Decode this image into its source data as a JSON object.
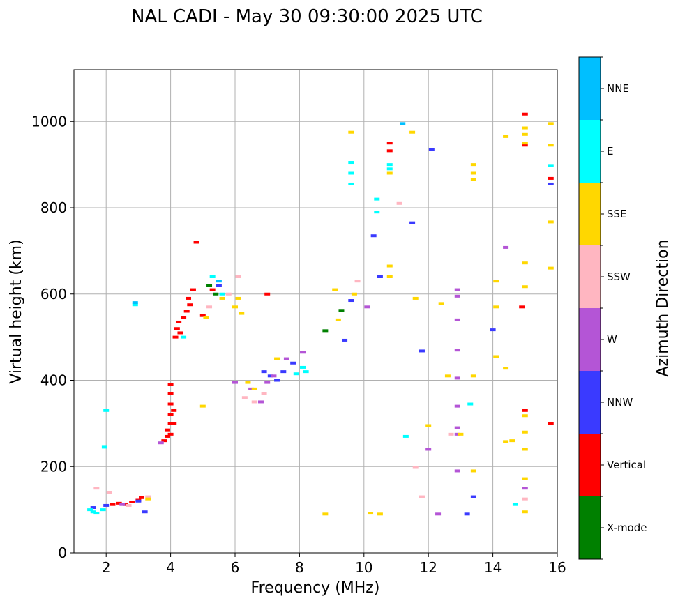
{
  "chart_data": {
    "type": "scatter",
    "title": "NAL CADI - May 30 09:30:00 2025 UTC",
    "xlabel": "Frequency (MHz)",
    "ylabel": "Virtual height (km)",
    "xlim": [
      1,
      16
    ],
    "ylim": [
      0,
      1120
    ],
    "xticks": [
      "2",
      "4",
      "6",
      "8",
      "10",
      "12",
      "14",
      "16"
    ],
    "yticks": [
      "0",
      "200",
      "400",
      "600",
      "800",
      "1000"
    ],
    "xtick_values": [
      2,
      4,
      6,
      8,
      10,
      12,
      14,
      16
    ],
    "ytick_values": [
      0,
      200,
      400,
      600,
      800,
      1000
    ],
    "grid": true,
    "colorbar": {
      "label": "Azimuth Direction",
      "categories": [
        "X-mode",
        "Vertical",
        "NNW",
        "W",
        "SSW",
        "SSE",
        "E",
        "NNE"
      ],
      "colors": [
        "#008000",
        "#ff0000",
        "#3a3aff",
        "#b455d6",
        "#ffb6c1",
        "#ffd700",
        "#00ffff",
        "#00bfff"
      ]
    },
    "series": [
      {
        "name": "Vertical",
        "points": [
          [
            2.2,
            112
          ],
          [
            2.4,
            115
          ],
          [
            2.6,
            112
          ],
          [
            2.8,
            118
          ],
          [
            3.0,
            122
          ],
          [
            3.1,
            128
          ],
          [
            3.8,
            260
          ],
          [
            3.9,
            270
          ],
          [
            3.9,
            285
          ],
          [
            4.0,
            275
          ],
          [
            4.0,
            300
          ],
          [
            4.0,
            320
          ],
          [
            4.0,
            345
          ],
          [
            4.0,
            370
          ],
          [
            4.0,
            390
          ],
          [
            4.1,
            300
          ],
          [
            4.1,
            330
          ],
          [
            4.15,
            500
          ],
          [
            4.2,
            520
          ],
          [
            4.25,
            535
          ],
          [
            4.3,
            510
          ],
          [
            4.4,
            545
          ],
          [
            4.5,
            560
          ],
          [
            4.55,
            590
          ],
          [
            4.6,
            575
          ],
          [
            4.7,
            610
          ],
          [
            4.8,
            720
          ],
          [
            5.0,
            550
          ],
          [
            5.3,
            610
          ],
          [
            7.0,
            600
          ],
          [
            10.8,
            950
          ],
          [
            10.8,
            932
          ],
          [
            14.9,
            570
          ],
          [
            15.0,
            1017
          ],
          [
            15.0,
            945
          ],
          [
            15.0,
            330
          ],
          [
            15.8,
            300
          ],
          [
            15.8,
            868
          ]
        ]
      },
      {
        "name": "NNW",
        "points": [
          [
            1.6,
            105
          ],
          [
            2.0,
            110
          ],
          [
            3.0,
            120
          ],
          [
            3.2,
            95
          ],
          [
            5.5,
            620
          ],
          [
            6.9,
            420
          ],
          [
            7.1,
            410
          ],
          [
            7.3,
            400
          ],
          [
            7.5,
            420
          ],
          [
            7.8,
            440
          ],
          [
            9.4,
            493
          ],
          [
            9.6,
            585
          ],
          [
            10.3,
            735
          ],
          [
            10.5,
            640
          ],
          [
            11.5,
            765
          ],
          [
            11.8,
            468
          ],
          [
            12.1,
            935
          ],
          [
            13.2,
            90
          ],
          [
            13.4,
            130
          ],
          [
            14.0,
            517
          ],
          [
            15.8,
            855
          ]
        ]
      },
      {
        "name": "W",
        "points": [
          [
            2.5,
            112
          ],
          [
            3.7,
            255
          ],
          [
            6.0,
            395
          ],
          [
            6.5,
            380
          ],
          [
            6.8,
            350
          ],
          [
            7.0,
            395
          ],
          [
            7.2,
            410
          ],
          [
            7.6,
            450
          ],
          [
            8.1,
            465
          ],
          [
            10.1,
            570
          ],
          [
            12.0,
            240
          ],
          [
            12.3,
            90
          ],
          [
            12.9,
            610
          ],
          [
            12.9,
            595
          ],
          [
            12.9,
            540
          ],
          [
            12.9,
            470
          ],
          [
            12.9,
            405
          ],
          [
            12.9,
            340
          ],
          [
            12.9,
            290
          ],
          [
            12.9,
            275
          ],
          [
            12.9,
            190
          ],
          [
            14.4,
            708
          ],
          [
            15.0,
            150
          ]
        ]
      },
      {
        "name": "SSW",
        "points": [
          [
            1.7,
            150
          ],
          [
            2.1,
            140
          ],
          [
            2.7,
            110
          ],
          [
            3.3,
            130
          ],
          [
            5.2,
            570
          ],
          [
            5.8,
            600
          ],
          [
            6.1,
            640
          ],
          [
            6.3,
            360
          ],
          [
            6.6,
            350
          ],
          [
            6.9,
            370
          ],
          [
            9.8,
            630
          ],
          [
            11.1,
            810
          ],
          [
            11.8,
            130
          ],
          [
            12.7,
            275
          ],
          [
            15.0,
            125
          ],
          [
            11.6,
            198
          ]
        ]
      },
      {
        "name": "SSE",
        "points": [
          [
            3.3,
            125
          ],
          [
            5.0,
            340
          ],
          [
            5.1,
            545
          ],
          [
            5.6,
            590
          ],
          [
            6.0,
            570
          ],
          [
            6.1,
            590
          ],
          [
            6.2,
            555
          ],
          [
            6.4,
            395
          ],
          [
            6.6,
            380
          ],
          [
            7.3,
            450
          ],
          [
            8.8,
            90
          ],
          [
            9.1,
            610
          ],
          [
            9.2,
            540
          ],
          [
            9.6,
            975
          ],
          [
            9.7,
            600
          ],
          [
            10.2,
            92
          ],
          [
            10.5,
            90
          ],
          [
            10.8,
            665
          ],
          [
            10.8,
            640
          ],
          [
            10.8,
            880
          ],
          [
            11.5,
            975
          ],
          [
            11.6,
            590
          ],
          [
            12.0,
            295
          ],
          [
            12.4,
            578
          ],
          [
            12.6,
            410
          ],
          [
            13.0,
            275
          ],
          [
            13.4,
            900
          ],
          [
            13.4,
            880
          ],
          [
            13.4,
            865
          ],
          [
            13.4,
            410
          ],
          [
            13.4,
            190
          ],
          [
            14.1,
            630
          ],
          [
            14.1,
            570
          ],
          [
            14.1,
            455
          ],
          [
            14.4,
            965
          ],
          [
            14.4,
            428
          ],
          [
            14.4,
            258
          ],
          [
            14.6,
            260
          ],
          [
            15.0,
            985
          ],
          [
            15.0,
            970
          ],
          [
            15.0,
            950
          ],
          [
            15.0,
            672
          ],
          [
            15.0,
            617
          ],
          [
            15.0,
            318
          ],
          [
            15.0,
            280
          ],
          [
            15.0,
            240
          ],
          [
            15.0,
            172
          ],
          [
            15.0,
            95
          ],
          [
            15.8,
            995
          ],
          [
            15.8,
            945
          ],
          [
            15.8,
            767
          ],
          [
            15.8,
            660
          ]
        ]
      },
      {
        "name": "E",
        "points": [
          [
            1.5,
            100
          ],
          [
            1.6,
            95
          ],
          [
            1.7,
            92
          ],
          [
            1.9,
            100
          ],
          [
            1.95,
            245
          ],
          [
            2.0,
            330
          ],
          [
            2.9,
            575
          ],
          [
            4.4,
            500
          ],
          [
            5.3,
            640
          ],
          [
            5.6,
            600
          ],
          [
            7.9,
            415
          ],
          [
            8.1,
            430
          ],
          [
            8.2,
            420
          ],
          [
            9.6,
            905
          ],
          [
            9.6,
            880
          ],
          [
            9.6,
            855
          ],
          [
            10.4,
            820
          ],
          [
            10.4,
            790
          ],
          [
            10.8,
            900
          ],
          [
            10.8,
            890
          ],
          [
            11.3,
            270
          ],
          [
            13.3,
            345
          ],
          [
            14.7,
            112
          ],
          [
            15.8,
            898
          ]
        ]
      },
      {
        "name": "X-mode",
        "points": [
          [
            5.2,
            620
          ],
          [
            5.4,
            600
          ],
          [
            8.8,
            515
          ],
          [
            9.3,
            562
          ]
        ]
      },
      {
        "name": "NNE",
        "points": [
          [
            2.9,
            580
          ],
          [
            5.5,
            630
          ],
          [
            11.2,
            995
          ]
        ]
      }
    ]
  }
}
